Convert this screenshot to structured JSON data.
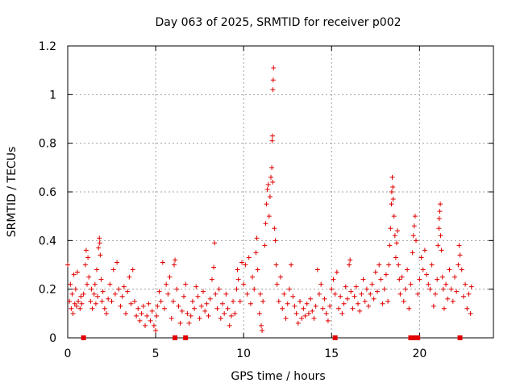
{
  "chart_data": {
    "type": "scatter",
    "title": "Day 063 of 2025, SRMTID for receiver p002",
    "xlabel": "GPS time / hours",
    "ylabel": "SRMTID / TECUs",
    "xlim": [
      0,
      24.2
    ],
    "ylim": [
      0,
      1.2
    ],
    "xticks": [
      0,
      5,
      10,
      15,
      20
    ],
    "yticks": [
      0,
      0.2,
      0.4,
      0.6,
      0.8,
      1,
      1.2
    ],
    "ytick_labels": [
      "0",
      "0.2",
      "0.4",
      "0.6",
      "0.8",
      "1",
      "1.2"
    ],
    "grid": true,
    "series": [
      {
        "name": "SRMTID",
        "color": "#e00000",
        "marker": "plus",
        "points": [
          [
            0.0,
            0.3
          ],
          [
            0.1,
            0.15
          ],
          [
            0.15,
            0.22
          ],
          [
            0.2,
            0.12
          ],
          [
            0.25,
            0.18
          ],
          [
            0.3,
            0.1
          ],
          [
            0.35,
            0.26
          ],
          [
            0.4,
            0.14
          ],
          [
            0.45,
            0.2
          ],
          [
            0.5,
            0.13
          ],
          [
            0.55,
            0.27
          ],
          [
            0.6,
            0.15
          ],
          [
            0.7,
            0.12
          ],
          [
            0.75,
            0.17
          ],
          [
            0.8,
            0.14
          ],
          [
            0.9,
            0.18
          ],
          [
            1.0,
            0.3
          ],
          [
            1.05,
            0.36
          ],
          [
            1.1,
            0.22
          ],
          [
            1.15,
            0.33
          ],
          [
            1.2,
            0.25
          ],
          [
            1.3,
            0.15
          ],
          [
            1.35,
            0.2
          ],
          [
            1.4,
            0.12
          ],
          [
            1.5,
            0.18
          ],
          [
            1.55,
            0.22
          ],
          [
            1.6,
            0.14
          ],
          [
            1.65,
            0.28
          ],
          [
            1.7,
            0.17
          ],
          [
            1.75,
            0.37
          ],
          [
            1.8,
            0.41
          ],
          [
            1.82,
            0.39
          ],
          [
            1.85,
            0.34
          ],
          [
            1.9,
            0.24
          ],
          [
            1.95,
            0.15
          ],
          [
            2.0,
            0.19
          ],
          [
            2.1,
            0.12
          ],
          [
            2.2,
            0.1
          ],
          [
            2.3,
            0.16
          ],
          [
            2.4,
            0.22
          ],
          [
            2.5,
            0.15
          ],
          [
            2.6,
            0.28
          ],
          [
            2.7,
            0.18
          ],
          [
            2.8,
            0.31
          ],
          [
            2.9,
            0.2
          ],
          [
            3.0,
            0.13
          ],
          [
            3.1,
            0.17
          ],
          [
            3.2,
            0.21
          ],
          [
            3.3,
            0.1
          ],
          [
            3.4,
            0.19
          ],
          [
            3.5,
            0.25
          ],
          [
            3.6,
            0.14
          ],
          [
            3.7,
            0.28
          ],
          [
            3.8,
            0.15
          ],
          [
            3.9,
            0.09
          ],
          [
            4.0,
            0.12
          ],
          [
            4.1,
            0.07
          ],
          [
            4.2,
            0.1
          ],
          [
            4.3,
            0.13
          ],
          [
            4.4,
            0.05
          ],
          [
            4.5,
            0.09
          ],
          [
            4.6,
            0.14
          ],
          [
            4.7,
            0.07
          ],
          [
            4.8,
            0.11
          ],
          [
            4.9,
            0.05
          ],
          [
            5.0,
            0.03
          ],
          [
            5.05,
            0.09
          ],
          [
            5.1,
            0.13
          ],
          [
            5.2,
            0.19
          ],
          [
            5.3,
            0.15
          ],
          [
            5.4,
            0.31
          ],
          [
            5.5,
            0.12
          ],
          [
            5.6,
            0.22
          ],
          [
            5.7,
            0.18
          ],
          [
            5.8,
            0.25
          ],
          [
            5.9,
            0.08
          ],
          [
            6.0,
            0.15
          ],
          [
            6.05,
            0.3
          ],
          [
            6.1,
            0.32
          ],
          [
            6.2,
            0.2
          ],
          [
            6.3,
            0.13
          ],
          [
            6.4,
            0.06
          ],
          [
            6.5,
            0.11
          ],
          [
            6.6,
            0.17
          ],
          [
            6.7,
            0.22
          ],
          [
            6.8,
            0.1
          ],
          [
            6.9,
            0.06
          ],
          [
            7.0,
            0.09
          ],
          [
            7.1,
            0.15
          ],
          [
            7.2,
            0.12
          ],
          [
            7.3,
            0.21
          ],
          [
            7.4,
            0.17
          ],
          [
            7.5,
            0.08
          ],
          [
            7.6,
            0.13
          ],
          [
            7.7,
            0.19
          ],
          [
            7.8,
            0.11
          ],
          [
            7.9,
            0.14
          ],
          [
            8.0,
            0.09
          ],
          [
            8.1,
            0.16
          ],
          [
            8.2,
            0.24
          ],
          [
            8.3,
            0.29
          ],
          [
            8.35,
            0.39
          ],
          [
            8.4,
            0.18
          ],
          [
            8.5,
            0.12
          ],
          [
            8.6,
            0.2
          ],
          [
            8.7,
            0.08
          ],
          [
            8.8,
            0.14
          ],
          [
            8.9,
            0.1
          ],
          [
            9.0,
            0.18
          ],
          [
            9.1,
            0.12
          ],
          [
            9.2,
            0.05
          ],
          [
            9.3,
            0.09
          ],
          [
            9.4,
            0.15
          ],
          [
            9.5,
            0.1
          ],
          [
            9.6,
            0.2
          ],
          [
            9.65,
            0.28
          ],
          [
            9.7,
            0.24
          ],
          [
            9.8,
            0.15
          ],
          [
            9.9,
            0.31
          ],
          [
            10.0,
            0.22
          ],
          [
            10.1,
            0.3
          ],
          [
            10.2,
            0.18
          ],
          [
            10.3,
            0.33
          ],
          [
            10.4,
            0.14
          ],
          [
            10.5,
            0.25
          ],
          [
            10.6,
            0.2
          ],
          [
            10.7,
            0.35
          ],
          [
            10.75,
            0.41
          ],
          [
            10.8,
            0.28
          ],
          [
            10.9,
            0.1
          ],
          [
            10.95,
            0.18
          ],
          [
            11.0,
            0.05
          ],
          [
            11.05,
            0.03
          ],
          [
            11.1,
            0.15
          ],
          [
            11.2,
            0.38
          ],
          [
            11.25,
            0.47
          ],
          [
            11.3,
            0.55
          ],
          [
            11.35,
            0.61
          ],
          [
            11.4,
            0.63
          ],
          [
            11.45,
            0.5
          ],
          [
            11.5,
            0.58
          ],
          [
            11.55,
            0.66
          ],
          [
            11.6,
            0.7
          ],
          [
            11.65,
            0.64
          ],
          [
            11.62,
            0.81
          ],
          [
            11.64,
            0.83
          ],
          [
            11.66,
            1.02
          ],
          [
            11.68,
            1.06
          ],
          [
            11.7,
            1.11
          ],
          [
            11.75,
            0.45
          ],
          [
            11.8,
            0.4
          ],
          [
            11.85,
            0.3
          ],
          [
            11.9,
            0.22
          ],
          [
            12.0,
            0.15
          ],
          [
            12.1,
            0.25
          ],
          [
            12.2,
            0.12
          ],
          [
            12.3,
            0.18
          ],
          [
            12.4,
            0.08
          ],
          [
            12.5,
            0.14
          ],
          [
            12.6,
            0.2
          ],
          [
            12.7,
            0.3
          ],
          [
            12.8,
            0.17
          ],
          [
            12.9,
            0.13
          ],
          [
            13.0,
            0.1
          ],
          [
            13.1,
            0.06
          ],
          [
            13.2,
            0.15
          ],
          [
            13.3,
            0.08
          ],
          [
            13.4,
            0.12
          ],
          [
            13.5,
            0.09
          ],
          [
            13.6,
            0.14
          ],
          [
            13.7,
            0.1
          ],
          [
            13.8,
            0.16
          ],
          [
            13.9,
            0.11
          ],
          [
            14.0,
            0.08
          ],
          [
            14.1,
            0.13
          ],
          [
            14.2,
            0.28
          ],
          [
            14.3,
            0.18
          ],
          [
            14.4,
            0.22
          ],
          [
            14.5,
            0.12
          ],
          [
            14.6,
            0.16
          ],
          [
            14.7,
            0.1
          ],
          [
            14.8,
            0.07
          ],
          [
            14.9,
            0.13
          ],
          [
            15.0,
            0.2
          ],
          [
            15.1,
            0.24
          ],
          [
            15.2,
            0.18
          ],
          [
            15.3,
            0.27
          ],
          [
            15.4,
            0.12
          ],
          [
            15.5,
            0.17
          ],
          [
            15.6,
            0.1
          ],
          [
            15.7,
            0.14
          ],
          [
            15.8,
            0.21
          ],
          [
            15.9,
            0.16
          ],
          [
            16.0,
            0.3
          ],
          [
            16.05,
            0.32
          ],
          [
            16.1,
            0.19
          ],
          [
            16.2,
            0.12
          ],
          [
            16.3,
            0.17
          ],
          [
            16.4,
            0.21
          ],
          [
            16.5,
            0.14
          ],
          [
            16.6,
            0.11
          ],
          [
            16.7,
            0.18
          ],
          [
            16.8,
            0.24
          ],
          [
            16.9,
            0.15
          ],
          [
            17.0,
            0.2
          ],
          [
            17.1,
            0.13
          ],
          [
            17.2,
            0.18
          ],
          [
            17.3,
            0.22
          ],
          [
            17.4,
            0.16
          ],
          [
            17.5,
            0.27
          ],
          [
            17.6,
            0.19
          ],
          [
            17.7,
            0.3
          ],
          [
            17.8,
            0.24
          ],
          [
            17.9,
            0.14
          ],
          [
            18.0,
            0.2
          ],
          [
            18.1,
            0.26
          ],
          [
            18.2,
            0.15
          ],
          [
            18.25,
            0.3
          ],
          [
            18.3,
            0.38
          ],
          [
            18.35,
            0.45
          ],
          [
            18.4,
            0.55
          ],
          [
            18.42,
            0.6
          ],
          [
            18.45,
            0.66
          ],
          [
            18.48,
            0.62
          ],
          [
            18.5,
            0.57
          ],
          [
            18.55,
            0.5
          ],
          [
            18.6,
            0.42
          ],
          [
            18.65,
            0.33
          ],
          [
            18.7,
            0.39
          ],
          [
            18.75,
            0.44
          ],
          [
            18.8,
            0.3
          ],
          [
            18.85,
            0.24
          ],
          [
            18.9,
            0.18
          ],
          [
            19.0,
            0.25
          ],
          [
            19.1,
            0.15
          ],
          [
            19.2,
            0.2
          ],
          [
            19.3,
            0.28
          ],
          [
            19.4,
            0.12
          ],
          [
            19.5,
            0.22
          ],
          [
            19.6,
            0.35
          ],
          [
            19.65,
            0.42
          ],
          [
            19.7,
            0.46
          ],
          [
            19.75,
            0.5
          ],
          [
            19.8,
            0.4
          ],
          [
            19.9,
            0.18
          ],
          [
            20.0,
            0.24
          ],
          [
            20.1,
            0.33
          ],
          [
            20.2,
            0.28
          ],
          [
            20.3,
            0.36
          ],
          [
            20.4,
            0.26
          ],
          [
            20.5,
            0.22
          ],
          [
            20.6,
            0.2
          ],
          [
            20.7,
            0.3
          ],
          [
            20.8,
            0.13
          ],
          [
            20.9,
            0.18
          ],
          [
            21.0,
            0.24
          ],
          [
            21.05,
            0.38
          ],
          [
            21.1,
            0.45
          ],
          [
            21.12,
            0.49
          ],
          [
            21.15,
            0.52
          ],
          [
            21.18,
            0.55
          ],
          [
            21.2,
            0.42
          ],
          [
            21.25,
            0.36
          ],
          [
            21.3,
            0.25
          ],
          [
            21.35,
            0.2
          ],
          [
            21.4,
            0.12
          ],
          [
            21.5,
            0.22
          ],
          [
            21.6,
            0.16
          ],
          [
            21.7,
            0.28
          ],
          [
            21.8,
            0.2
          ],
          [
            21.9,
            0.15
          ],
          [
            22.0,
            0.25
          ],
          [
            22.1,
            0.19
          ],
          [
            22.2,
            0.3
          ],
          [
            22.25,
            0.38
          ],
          [
            22.3,
            0.34
          ],
          [
            22.4,
            0.28
          ],
          [
            22.5,
            0.17
          ],
          [
            22.6,
            0.22
          ],
          [
            22.7,
            0.12
          ],
          [
            22.8,
            0.18
          ],
          [
            22.9,
            0.1
          ],
          [
            22.95,
            0.21
          ]
        ]
      }
    ],
    "zero_markers_x": [
      0.9,
      6.1,
      6.7,
      15.2,
      19.5,
      19.7,
      19.9,
      22.3
    ]
  }
}
